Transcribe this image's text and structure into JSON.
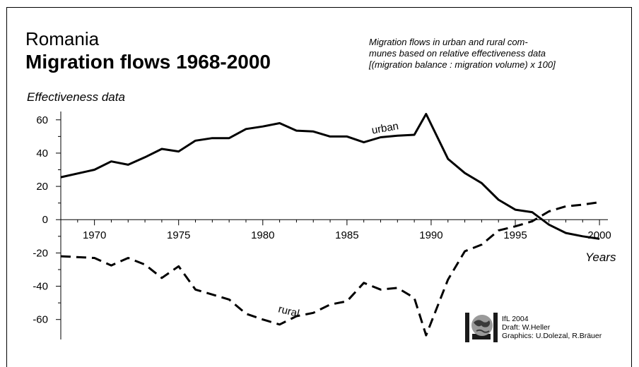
{
  "header": {
    "country": "Romania",
    "title": "Migration flows 1968-2000",
    "description_lines": [
      "Migration flows in urban and rural com-",
      "munes based on relative effectiveness data",
      "[(migration balance : migration volume) x 100]"
    ]
  },
  "credits": {
    "lines": [
      "IfL 2004",
      "Draft: W.Heller",
      "Graphics: U.Dolezal, R.Bräuer"
    ]
  },
  "colors": {
    "line": "#000000",
    "background": "#ffffff",
    "logo": "#1a1a1a"
  },
  "logo_icon": "ifl-globe-logo",
  "chart_data": {
    "type": "line",
    "ylabel": "Effectiveness data",
    "xlabel": "Years",
    "xlim": [
      1968,
      2000.5
    ],
    "ylim": [
      -72,
      65
    ],
    "xticks": [
      1970,
      1975,
      1980,
      1985,
      1990,
      1995,
      2000
    ],
    "yticks": [
      60,
      40,
      20,
      0,
      -20,
      -40,
      -60
    ],
    "grid": false,
    "series": [
      {
        "name": "urban",
        "style": "solid",
        "x": [
          1968,
          1970,
          1971,
          1972,
          1973,
          1974,
          1975,
          1976,
          1977,
          1978,
          1979,
          1980,
          1981,
          1982,
          1983,
          1984,
          1985,
          1986,
          1987,
          1988,
          1989,
          1989.7,
          1991,
          1992,
          1993,
          1994,
          1995,
          1996,
          1997,
          1998,
          1999,
          2000
        ],
        "y": [
          25.5,
          30,
          35,
          33,
          37.5,
          42.5,
          41,
          47.5,
          49,
          49,
          54.5,
          56,
          58,
          53.5,
          53,
          50,
          50,
          46.5,
          49.5,
          50.5,
          51,
          63.5,
          36.5,
          28,
          22,
          12,
          6,
          4.5,
          -3,
          -8,
          -10,
          -11.5
        ]
      },
      {
        "name": "rural",
        "style": "dashed",
        "x": [
          1968,
          1970,
          1971,
          1972,
          1973,
          1974,
          1975,
          1976,
          1977,
          1978,
          1979,
          1980,
          1981,
          1982,
          1983,
          1984,
          1985,
          1986,
          1987,
          1988,
          1989,
          1989.7,
          1991,
          1992,
          1993,
          1994,
          1995,
          1996,
          1997,
          1998,
          1999,
          2000
        ],
        "y": [
          -22,
          -23,
          -27.5,
          -23,
          -27,
          -35,
          -28,
          -42,
          -45,
          -48,
          -56.5,
          -60,
          -63,
          -58,
          -56,
          -51,
          -49,
          -38,
          -42,
          -41,
          -47,
          -69.5,
          -36,
          -19,
          -15,
          -6.5,
          -4,
          -1,
          5,
          8,
          9,
          10.5
        ]
      }
    ],
    "annotations": [
      {
        "text": "urban",
        "x": 1987.3,
        "y": 53,
        "angle": -10
      },
      {
        "text": "rural",
        "x": 1981.5,
        "y": -57,
        "angle": 14
      }
    ]
  }
}
